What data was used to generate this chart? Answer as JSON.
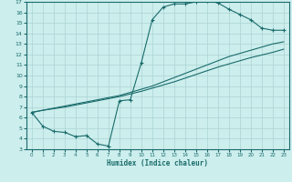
{
  "title": "",
  "xlabel": "Humidex (Indice chaleur)",
  "bg_color": "#cceeed",
  "grid_color": "#aad4d3",
  "line_color": "#1a6b6b",
  "xlim": [
    -0.5,
    23.5
  ],
  "ylim": [
    3,
    17
  ],
  "xticks": [
    0,
    1,
    2,
    3,
    4,
    5,
    6,
    7,
    8,
    9,
    10,
    11,
    12,
    13,
    14,
    15,
    16,
    17,
    18,
    19,
    20,
    21,
    22,
    23
  ],
  "yticks": [
    3,
    4,
    5,
    6,
    7,
    8,
    9,
    10,
    11,
    12,
    13,
    14,
    15,
    16,
    17
  ],
  "curve1_x": [
    0,
    1,
    2,
    3,
    4,
    5,
    6,
    7,
    8,
    9,
    10,
    11,
    12,
    13,
    14,
    15,
    16,
    17,
    18,
    19,
    20,
    21,
    22,
    23
  ],
  "curve1_y": [
    6.5,
    5.2,
    4.7,
    4.6,
    4.2,
    4.3,
    3.5,
    3.3,
    7.6,
    7.7,
    11.2,
    15.3,
    16.5,
    16.8,
    16.8,
    17.0,
    17.1,
    16.9,
    16.3,
    15.8,
    15.3,
    14.5,
    14.3,
    14.3
  ],
  "curve2_x": [
    0,
    1,
    2,
    3,
    4,
    5,
    6,
    7,
    8,
    9,
    10,
    11,
    12,
    13,
    14,
    15,
    16,
    17,
    18,
    19,
    20,
    21,
    22,
    23
  ],
  "curve2_y": [
    6.5,
    6.7,
    6.9,
    7.1,
    7.3,
    7.5,
    7.7,
    7.9,
    8.1,
    8.4,
    8.7,
    9.0,
    9.4,
    9.8,
    10.2,
    10.6,
    11.0,
    11.4,
    11.8,
    12.1,
    12.4,
    12.7,
    13.0,
    13.2
  ],
  "curve3_x": [
    0,
    1,
    2,
    3,
    4,
    5,
    6,
    7,
    8,
    9,
    10,
    11,
    12,
    13,
    14,
    15,
    16,
    17,
    18,
    19,
    20,
    21,
    22,
    23
  ],
  "curve3_y": [
    6.5,
    6.7,
    6.85,
    7.0,
    7.2,
    7.4,
    7.6,
    7.8,
    8.0,
    8.25,
    8.5,
    8.8,
    9.1,
    9.4,
    9.75,
    10.1,
    10.45,
    10.8,
    11.1,
    11.4,
    11.7,
    11.95,
    12.2,
    12.5
  ]
}
